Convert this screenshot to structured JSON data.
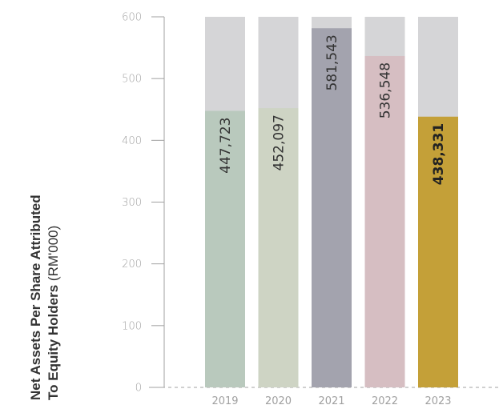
{
  "chart_data": {
    "type": "bar",
    "categories": [
      "2019",
      "2020",
      "2021",
      "2022",
      "2023"
    ],
    "values": [
      447723,
      452097,
      581543,
      536548,
      438331
    ],
    "value_labels": [
      "447,723",
      "452,097",
      "581,543",
      "536,548",
      "438,331"
    ],
    "bar_colors": [
      "#b9c9bd",
      "#ced4c4",
      "#a3a3ae",
      "#d6bec2",
      "#c4a038"
    ],
    "background_color": "#d5d5d7",
    "highlight_index": 4,
    "ylabel_line1": "Net Assets Per Share Attributed",
    "ylabel_line2_bold": "To Equity Holders",
    "ylabel_unit": " (RM'000)",
    "yticks": [
      "0",
      "100",
      "200",
      "300",
      "400",
      "500",
      "600"
    ],
    "ylim": [
      0,
      600
    ],
    "grid": false
  }
}
